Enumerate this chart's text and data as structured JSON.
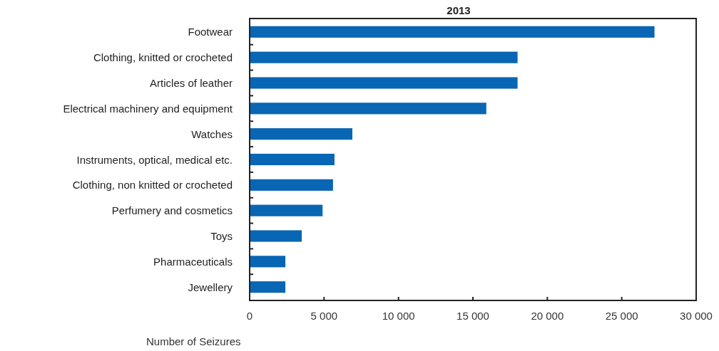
{
  "chart_data": {
    "type": "bar",
    "orientation": "horizontal",
    "title": "2013",
    "xlabel": "Number of Seizures",
    "categories": [
      "Footwear",
      "Clothing, knitted or crocheted",
      "Articles of leather",
      "Electrical machinery and equipment",
      "Watches",
      "Instruments, optical, medical etc.",
      "Clothing, non knitted or crocheted",
      "Perfumery and cosmetics",
      "Toys",
      "Pharmaceuticals",
      "Jewellery"
    ],
    "values": [
      27200,
      18000,
      18000,
      15900,
      6900,
      5700,
      5600,
      4900,
      3500,
      2400,
      2400
    ],
    "color": "#0866b4",
    "xlim": [
      0,
      30000
    ],
    "xticks": [
      0,
      {
        "value": 5000,
        "label": "5 000"
      },
      {
        "value": 10000,
        "label": "10 000"
      },
      {
        "value": 15000,
        "label": "15 000"
      },
      {
        "value": 20000,
        "label": "20 000"
      },
      {
        "value": 25000,
        "label": "25 000"
      },
      {
        "value": 30000,
        "label": "30 000"
      }
    ],
    "grid": false
  }
}
